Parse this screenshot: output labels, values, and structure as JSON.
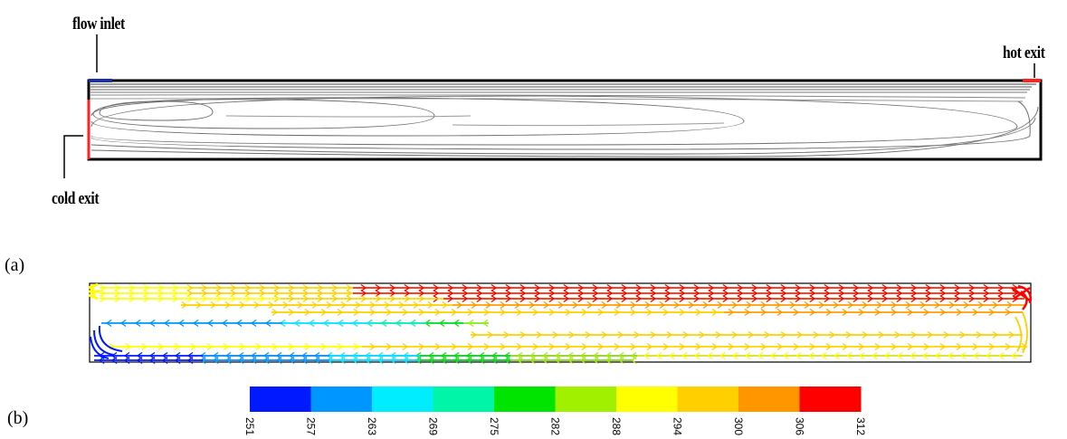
{
  "labels": {
    "flow_inlet": "flow inlet",
    "hot_exit": "hot exit",
    "cold_exit": "cold exit",
    "panel_a": "(a)",
    "panel_b": "(b)"
  },
  "colorbar": {
    "ticks": [
      "251",
      "257",
      "263",
      "269",
      "275",
      "282",
      "288",
      "294",
      "300",
      "306",
      "312"
    ],
    "colors": [
      "#0019ff",
      "#0096ff",
      "#00ecff",
      "#00f5a9",
      "#00e400",
      "#a0f000",
      "#ffff00",
      "#ffcf00",
      "#ff9600",
      "#ff0000"
    ]
  },
  "colors": {
    "cold": "#0019ff",
    "hot": "#ff0000",
    "inlet": "#1b2fa8"
  }
}
